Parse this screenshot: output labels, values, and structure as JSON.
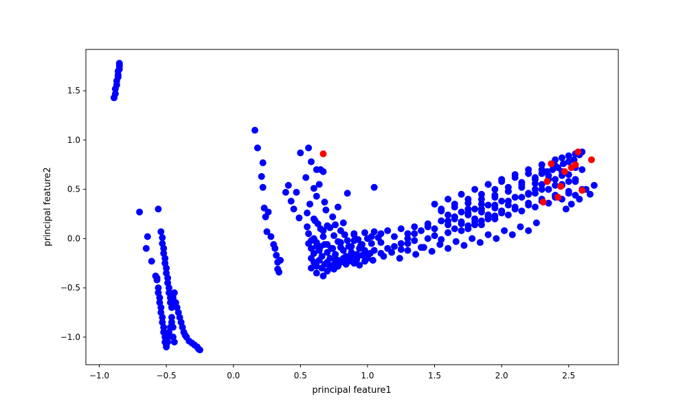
{
  "chart_data": {
    "type": "scatter",
    "xlabel": "principal feature1",
    "ylabel": "principal feature2",
    "xlim": [
      -1.1,
      2.87
    ],
    "ylim": [
      -1.28,
      1.92
    ],
    "xticks": [
      -1.0,
      -0.5,
      0.0,
      0.5,
      1.0,
      1.5,
      2.0,
      2.5
    ],
    "yticks": [
      -1.0,
      -0.5,
      0.0,
      0.5,
      1.0,
      1.5
    ],
    "xtick_labels": [
      "−1.0",
      "−0.5",
      "0.0",
      "0.5",
      "1.0",
      "1.5",
      "2.0",
      "2.5"
    ],
    "ytick_labels": [
      "−1.0",
      "−0.5",
      "0.0",
      "0.5",
      "1.0",
      "1.5"
    ],
    "grid": false,
    "colors": {
      "series_a": "#0000ff",
      "series_b": "#ff0000",
      "axis": "#000000",
      "background": "#ffffff"
    },
    "series": [
      {
        "color": "#0000ff",
        "x": [
          -0.89,
          -0.89,
          -0.88,
          -0.88,
          -0.87,
          -0.87,
          -0.86,
          -0.86,
          -0.86,
          -0.85,
          -0.85,
          -0.85,
          -0.85,
          -0.7,
          -0.64,
          -0.65,
          -0.61,
          -0.58,
          -0.57,
          -0.56,
          -0.54,
          -0.53,
          -0.53,
          -0.52,
          -0.52,
          -0.51,
          -0.51,
          -0.5,
          -0.5,
          -0.49,
          -0.49,
          -0.48,
          -0.48,
          -0.47,
          -0.47,
          -0.46,
          -0.46,
          -0.45,
          -0.45,
          -0.44,
          -0.57,
          -0.56,
          -0.56,
          -0.55,
          -0.55,
          -0.54,
          -0.54,
          -0.53,
          -0.53,
          -0.52,
          -0.52,
          -0.51,
          -0.51,
          -0.5,
          -0.5,
          -0.49,
          -0.49,
          -0.48,
          -0.47,
          -0.46,
          -0.45,
          -0.44,
          -0.43,
          -0.42,
          -0.41,
          -0.4,
          -0.39,
          -0.38,
          -0.37,
          -0.36,
          -0.35,
          -0.33,
          -0.31,
          -0.29,
          -0.27,
          -0.26,
          -0.25,
          0.16,
          0.18,
          0.22,
          0.21,
          0.22,
          0.23,
          0.24,
          0.25,
          0.26,
          0.28,
          0.3,
          0.31,
          0.32,
          0.33,
          0.33,
          0.34,
          0.35,
          0.39,
          0.41,
          0.43,
          0.45,
          0.47,
          0.49,
          0.5,
          0.54,
          0.55,
          0.56,
          0.57,
          0.58,
          0.6,
          0.62,
          0.62,
          0.64,
          0.65,
          0.67,
          0.68,
          0.55,
          0.56,
          0.58,
          0.6,
          0.61,
          0.63,
          0.65,
          0.67,
          0.69,
          0.7,
          0.72,
          0.74,
          0.76,
          0.78,
          0.8,
          0.82,
          0.85,
          0.9,
          1.05,
          1.03,
          0.56,
          0.58,
          0.6,
          0.62,
          0.64,
          0.66,
          0.68,
          0.7,
          0.72,
          0.74,
          0.76,
          0.78,
          0.8,
          0.82,
          0.84,
          0.86,
          0.88,
          0.9,
          0.92,
          0.94,
          0.96,
          0.98,
          1.0,
          0.58,
          0.6,
          0.62,
          0.64,
          0.66,
          0.68,
          0.7,
          0.72,
          0.74,
          0.76,
          0.78,
          0.8,
          0.82,
          0.84,
          0.86,
          0.88,
          0.9,
          0.92,
          0.94,
          0.96,
          0.98,
          1.0,
          1.02,
          1.04,
          0.6,
          0.62,
          0.65,
          0.67,
          0.7,
          0.73,
          0.75,
          0.78,
          0.8,
          0.83,
          0.85,
          0.88,
          0.9,
          0.93,
          0.95,
          0.98,
          1.0,
          1.03,
          1.05,
          1.08,
          1.1,
          0.67,
          0.62,
          0.58,
          0.7,
          0.75,
          1.05,
          1.1,
          1.15,
          1.2,
          1.25,
          1.3,
          1.35,
          1.4,
          1.45,
          1.5,
          1.55,
          1.6,
          1.65,
          1.7,
          1.75,
          1.8,
          1.85,
          1.9,
          1.95,
          2.0,
          1.1,
          1.15,
          1.2,
          1.25,
          1.3,
          1.35,
          1.4,
          1.45,
          1.5,
          1.55,
          1.6,
          1.65,
          1.7,
          1.75,
          1.8,
          1.85,
          1.9,
          1.95,
          2.0,
          2.05,
          1.12,
          1.18,
          1.24,
          1.3,
          1.36,
          1.42,
          1.48,
          1.54,
          1.6,
          1.66,
          1.72,
          1.78,
          1.84,
          1.9,
          1.96,
          2.02,
          2.08,
          2.14,
          2.2,
          2.26,
          1.5,
          1.55,
          1.6,
          1.65,
          1.7,
          1.75,
          1.8,
          1.85,
          1.9,
          1.95,
          2.0,
          2.05,
          2.1,
          2.15,
          2.2,
          2.25,
          2.3,
          2.35,
          2.4,
          2.45,
          2.5,
          2.55,
          1.55,
          1.6,
          1.65,
          1.7,
          1.75,
          1.8,
          1.85,
          1.9,
          1.95,
          2.0,
          2.05,
          2.1,
          2.15,
          2.2,
          2.25,
          2.3,
          2.35,
          2.4,
          2.45,
          2.5,
          1.6,
          1.65,
          1.7,
          1.75,
          1.8,
          1.85,
          1.9,
          1.95,
          2.0,
          2.05,
          2.1,
          2.15,
          2.2,
          2.25,
          2.3,
          2.35,
          2.4,
          2.45,
          2.5,
          2.55,
          1.75,
          1.8,
          1.85,
          1.9,
          1.95,
          2.0,
          2.05,
          2.1,
          2.15,
          2.2,
          2.25,
          2.3,
          2.35,
          2.4,
          2.45,
          2.5,
          2.55,
          2.6,
          1.9,
          2.0,
          2.1,
          2.2,
          2.3,
          2.4,
          2.45,
          2.5,
          2.55,
          2.6,
          2.58,
          2.54,
          2.5,
          2.46,
          2.42,
          2.38,
          2.34,
          2.3,
          2.2,
          2.25,
          2.3,
          2.35,
          2.4,
          2.45,
          2.5,
          2.55,
          2.6,
          2.63,
          2.66,
          2.69,
          2.58,
          2.52,
          2.48,
          1.25,
          1.3,
          1.35,
          1.45,
          1.55,
          1.65,
          1.75,
          1.85,
          1.95,
          2.05,
          2.15,
          2.25
        ],
        "y": [
          1.43,
          1.43,
          1.47,
          1.52,
          1.56,
          1.6,
          1.64,
          1.66,
          1.7,
          1.72,
          1.75,
          1.77,
          1.78,
          0.27,
          0.02,
          -0.1,
          -0.23,
          -0.38,
          -0.42,
          0.3,
          0.07,
          0.01,
          -0.05,
          -0.1,
          -0.15,
          -0.2,
          -0.25,
          -0.3,
          -0.35,
          -0.4,
          -0.45,
          -0.5,
          -0.55,
          -0.6,
          -0.65,
          -0.7,
          -0.8,
          -0.9,
          -1.0,
          -1.05,
          -0.4,
          -0.5,
          -0.55,
          -0.6,
          -0.65,
          -0.7,
          -0.75,
          -0.8,
          -0.85,
          -0.9,
          -0.95,
          -1.0,
          -1.05,
          -1.08,
          -1.1,
          -1.05,
          -1.0,
          -0.95,
          -0.9,
          -0.85,
          -0.6,
          -0.55,
          -0.65,
          -0.7,
          -0.75,
          -0.8,
          -0.85,
          -0.9,
          -0.95,
          -0.98,
          -1.0,
          -1.04,
          -1.06,
          -1.08,
          -1.1,
          -1.12,
          -1.13,
          1.1,
          0.92,
          0.77,
          0.63,
          0.52,
          0.31,
          0.22,
          0.07,
          0.27,
          0.02,
          -0.06,
          -0.1,
          -0.17,
          -0.24,
          -0.31,
          -0.34,
          -0.22,
          0.47,
          0.54,
          0.38,
          0.3,
          0.47,
          0.21,
          0.87,
          0.62,
          0.26,
          0.92,
          0.35,
          0.78,
          0.51,
          0.7,
          0.43,
          0.55,
          0.7,
          0.68,
          0.37,
          0.12,
          0.05,
          -0.02,
          0.2,
          0.18,
          0.15,
          0.1,
          0.08,
          0.29,
          0.13,
          0.11,
          0.22,
          0.14,
          0.32,
          0.08,
          0.16,
          0.46,
          0.04,
          0.52,
          0.02,
          -0.05,
          -0.1,
          -0.15,
          -0.08,
          -0.12,
          -0.18,
          -0.06,
          -0.14,
          -0.2,
          -0.1,
          -0.16,
          -0.22,
          -0.04,
          -0.12,
          -0.18,
          -0.08,
          -0.14,
          -0.02,
          -0.16,
          -0.1,
          -0.06,
          -0.12,
          -0.18,
          -0.2,
          -0.24,
          -0.28,
          -0.22,
          -0.3,
          -0.26,
          -0.24,
          -0.3,
          -0.27,
          -0.22,
          -0.28,
          -0.24,
          -0.2,
          -0.26,
          -0.23,
          -0.19,
          -0.25,
          -0.21,
          -0.27,
          -0.17,
          -0.23,
          -0.2,
          -0.15,
          -0.22,
          0.0,
          -0.04,
          -0.08,
          0.02,
          -0.06,
          -0.1,
          0.03,
          -0.03,
          -0.09,
          0.04,
          -0.02,
          -0.08,
          0.05,
          -0.01,
          -0.07,
          0.06,
          0.0,
          -0.05,
          0.07,
          0.01,
          -0.04,
          -0.38,
          -0.35,
          -0.3,
          -0.33,
          -0.31,
          -0.12,
          -0.15,
          -0.1,
          -0.08,
          -0.11,
          -0.05,
          -0.02,
          -0.09,
          0.0,
          0.03,
          -0.01,
          0.06,
          0.1,
          0.08,
          0.13,
          0.17,
          0.14,
          0.2,
          0.23,
          0.27,
          0.05,
          0.08,
          0.02,
          0.1,
          0.05,
          0.12,
          0.08,
          0.15,
          0.1,
          0.18,
          0.14,
          0.2,
          0.17,
          0.24,
          0.2,
          0.27,
          0.24,
          0.31,
          0.28,
          0.34,
          -0.18,
          -0.14,
          -0.2,
          -0.12,
          -0.16,
          -0.09,
          -0.13,
          -0.06,
          -0.1,
          -0.03,
          -0.07,
          0.0,
          -0.04,
          0.04,
          0.0,
          0.08,
          0.04,
          0.12,
          0.08,
          0.16,
          0.35,
          0.3,
          0.4,
          0.35,
          0.45,
          0.4,
          0.5,
          0.45,
          0.55,
          0.5,
          0.58,
          0.52,
          0.62,
          0.57,
          0.66,
          0.6,
          0.7,
          0.64,
          0.74,
          0.68,
          0.78,
          0.72,
          0.28,
          0.24,
          0.32,
          0.27,
          0.36,
          0.3,
          0.4,
          0.34,
          0.44,
          0.38,
          0.48,
          0.42,
          0.52,
          0.46,
          0.56,
          0.5,
          0.6,
          0.54,
          0.64,
          0.58,
          0.18,
          0.22,
          0.15,
          0.26,
          0.2,
          0.3,
          0.24,
          0.34,
          0.28,
          0.38,
          0.32,
          0.42,
          0.36,
          0.46,
          0.4,
          0.5,
          0.44,
          0.54,
          0.48,
          0.58,
          0.1,
          0.14,
          0.18,
          0.22,
          0.2,
          0.26,
          0.24,
          0.3,
          0.28,
          0.34,
          0.32,
          0.38,
          0.36,
          0.42,
          0.4,
          0.46,
          0.44,
          0.5,
          0.55,
          0.6,
          0.65,
          0.7,
          0.75,
          0.8,
          0.82,
          0.84,
          0.86,
          0.88,
          0.85,
          0.8,
          0.78,
          0.76,
          0.72,
          0.7,
          0.68,
          0.66,
          0.45,
          0.5,
          0.55,
          0.5,
          0.6,
          0.55,
          0.65,
          0.6,
          0.7,
          0.5,
          0.45,
          0.54,
          0.4,
          0.35,
          0.3,
          -0.05,
          0.0,
          0.05,
          0.12,
          0.18,
          0.22,
          0.3,
          0.35,
          0.42,
          0.48,
          0.55,
          0.62
        ]
      },
      {
        "color": "#ff0000",
        "x": [
          0.67,
          2.37,
          2.44,
          2.52,
          2.55,
          2.57,
          2.6,
          2.67,
          2.42,
          2.31,
          2.47,
          2.34
        ],
        "y": [
          0.86,
          0.76,
          0.53,
          0.72,
          0.75,
          0.88,
          0.49,
          0.8,
          0.42,
          0.37,
          0.68,
          0.58
        ]
      }
    ]
  }
}
